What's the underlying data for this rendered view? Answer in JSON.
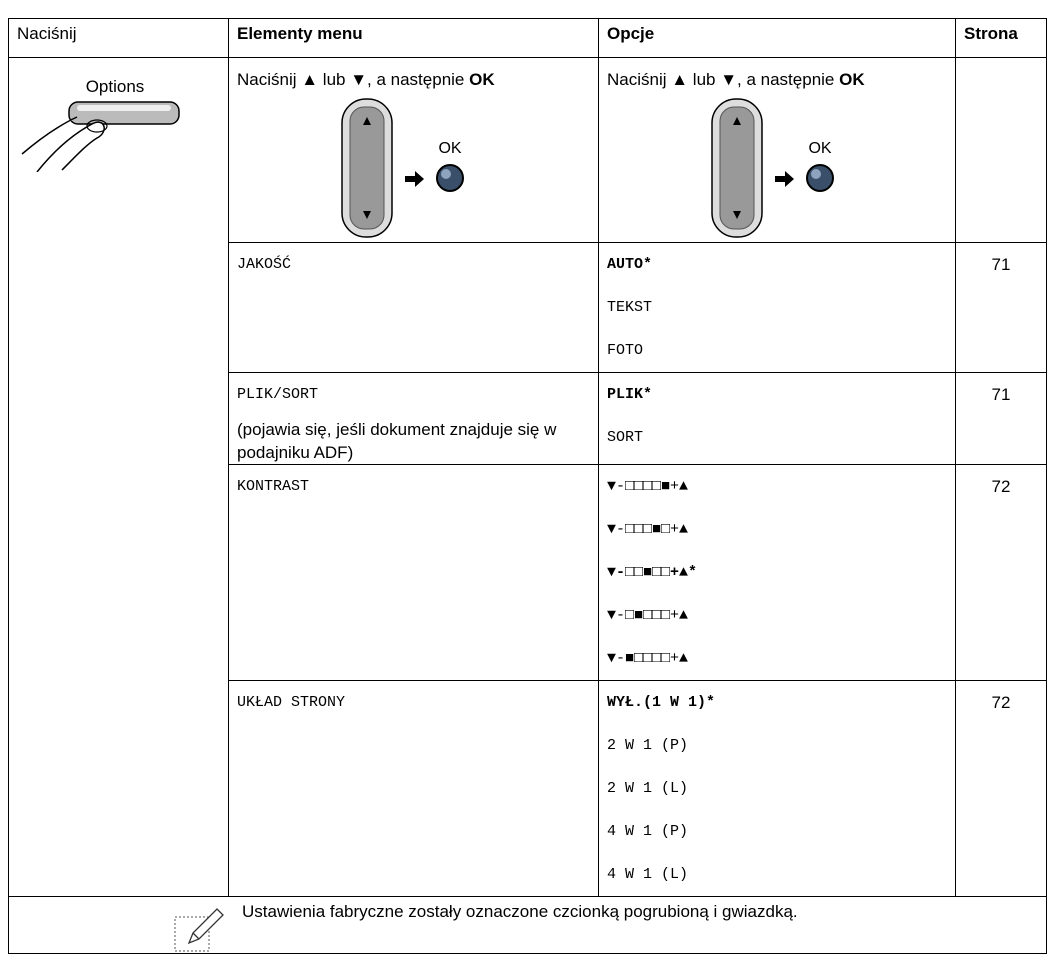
{
  "header": {
    "col1": "Naciśnij",
    "col2": "Elementy menu",
    "col3": "Opcje",
    "col4": "Strona"
  },
  "button_label": "Options",
  "instructions": [
    {
      "text": "Naciśnij ▲ lub ▼, a następnie",
      "bold": "OK",
      "ok_label": "OK"
    },
    {
      "text": "Naciśnij ▲ lub ▼, a następnie",
      "bold": "OK",
      "ok_label": "OK"
    }
  ],
  "rows": [
    {
      "item": "JAKOŚĆ",
      "options": [
        {
          "text": "AUTO*",
          "default": true
        },
        {
          "text": "TEKST"
        },
        {
          "text": "FOTO"
        }
      ],
      "page": 71
    },
    {
      "item": "PLIK/SORT",
      "description": "(pojawia się, jeśli dokument znajduje się w podajniku ADF)",
      "options": [
        {
          "text": "PLIK*",
          "default": true
        },
        {
          "text": "SORT"
        }
      ],
      "page": 71
    },
    {
      "item": "KONTRAST",
      "options": [
        {
          "text": "▼-□□□□■+▲"
        },
        {
          "text": "▼-□□□■□+▲"
        },
        {
          "text": "▼-□□■□□+▲*",
          "default": true
        },
        {
          "text": "▼-□■□□□+▲"
        },
        {
          "text": "▼-■□□□□+▲"
        }
      ],
      "page": 72
    },
    {
      "item": "UKŁAD STRONY",
      "options": [
        {
          "text": "WYŁ.(1 W 1)*",
          "default": true
        },
        {
          "text": "2 W 1 (P)"
        },
        {
          "text": "2 W 1 (L)"
        },
        {
          "text": "4 W 1 (P)"
        },
        {
          "text": "4 W 1 (L)"
        }
      ],
      "page": 72
    }
  ],
  "note": "Ustawienia fabryczne zostały oznaczone czcionką pogrubioną i gwiazdką."
}
